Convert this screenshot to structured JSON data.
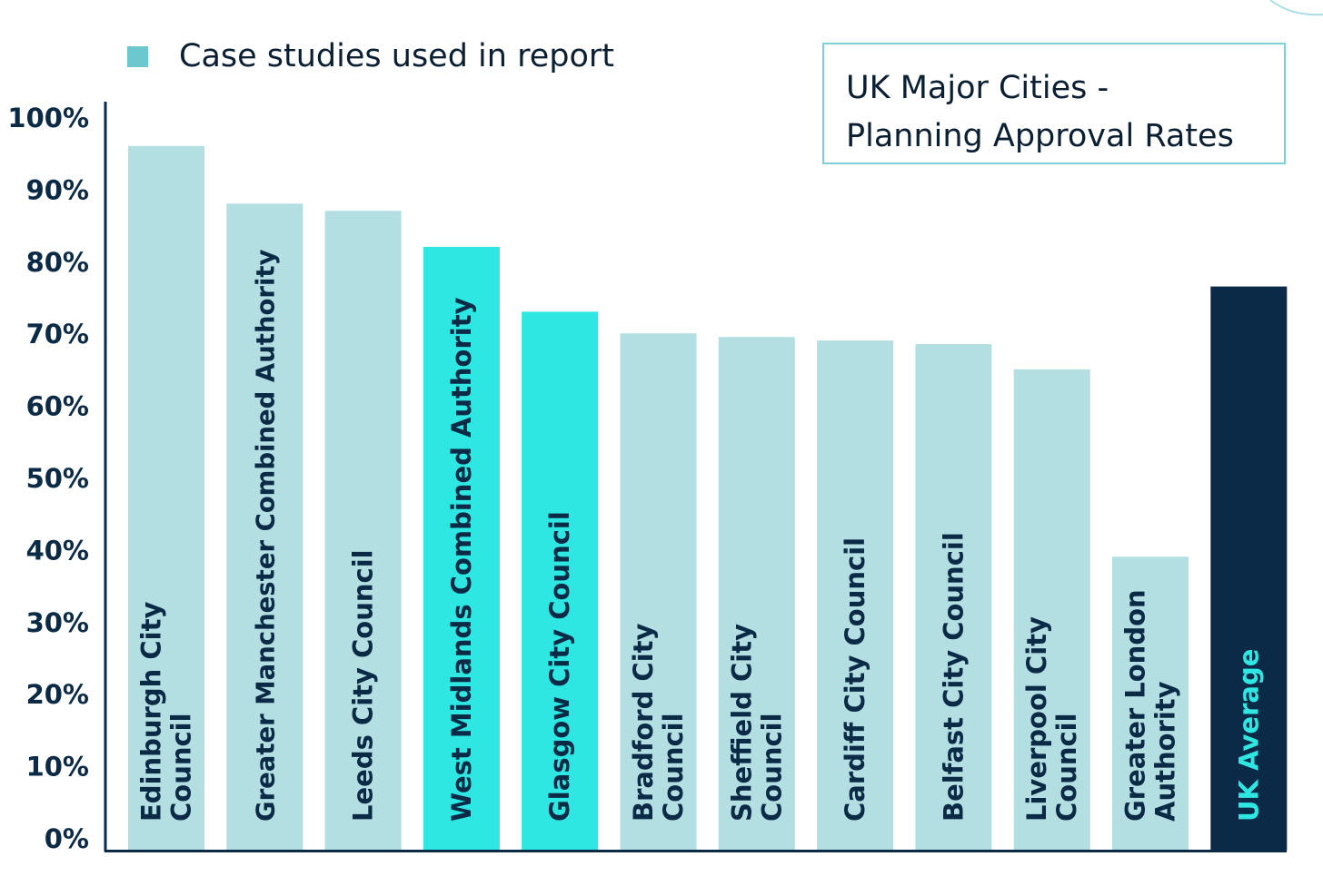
{
  "legend": {
    "label": "Case studies used in report",
    "color": "#6cc7cf"
  },
  "title": {
    "line1": "UK Major Cities -",
    "line2": "Planning Approval Rates"
  },
  "colors": {
    "default_bar": "#b3dfe3",
    "highlight_bar": "#2ee6e2",
    "average_bar": "#0a2a47",
    "average_text": "#2ee6e2",
    "bar_text": "#0b2a45",
    "axis": "#0a2a47"
  },
  "chart_data": {
    "type": "bar",
    "ylim": [
      0,
      100
    ],
    "yticks": [
      "0%",
      "10%",
      "20%",
      "30%",
      "40%",
      "50%",
      "60%",
      "70%",
      "80%",
      "90%",
      "100%"
    ],
    "categories": [
      "Edinburgh City Council",
      "Greater Manchester Combined Authority",
      "Leeds City Council",
      "West Midlands Combined Authority",
      "Glasgow City Council",
      "Bradford City Council",
      "Sheffield City Council",
      "Cardiff City Council",
      "Belfast City Council",
      "Liverpool City Council",
      "Greater London Authority",
      "UK Average"
    ],
    "values": [
      96,
      88,
      87,
      82,
      73,
      70,
      69.5,
      69,
      68.5,
      65,
      39,
      76.5
    ],
    "bar_styles": [
      "default",
      "default",
      "default",
      "case_study",
      "case_study",
      "default",
      "default",
      "default",
      "default",
      "default",
      "default",
      "average"
    ],
    "legend_position": "top-left"
  }
}
